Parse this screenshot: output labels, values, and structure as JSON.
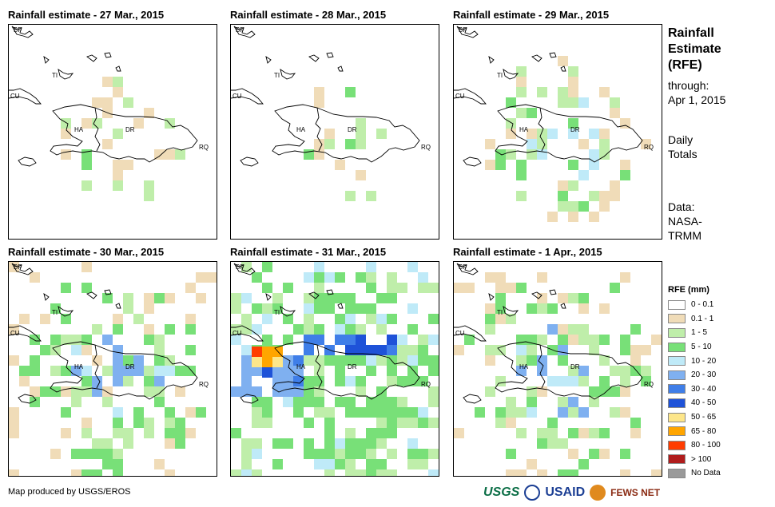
{
  "panels": [
    {
      "title": "Rainfall estimate - 27 Mar., 2015",
      "intensity": 1,
      "seed": 11
    },
    {
      "title": "Rainfall estimate - 28 Mar., 2015",
      "intensity": 1,
      "seed": 23
    },
    {
      "title": "Rainfall estimate - 29 Mar., 2015",
      "intensity": 2,
      "seed": 37
    },
    {
      "title": "Rainfall estimate - 30 Mar., 2015",
      "intensity": 3,
      "seed": 41
    },
    {
      "title": "Rainfall estimate - 31 Mar., 2015",
      "intensity": 5,
      "seed": 53
    },
    {
      "title": "Rainfall estimate - 1 Apr., 2015",
      "intensity": 3,
      "seed": 67
    }
  ],
  "map_labels": {
    "bf": "BF",
    "ti": "TI",
    "cu": "CU",
    "ha": "HA",
    "dr": "DR",
    "rq": "RQ"
  },
  "side": {
    "title": [
      "Rainfall",
      "Estimate",
      "(RFE)"
    ],
    "through": [
      "through:",
      "Apr 1, 2015"
    ],
    "totals": [
      "Daily",
      "Totals"
    ],
    "data": [
      "Data:",
      "NASA-",
      "TRMM"
    ]
  },
  "legend": {
    "title": "RFE (mm)",
    "items": [
      {
        "label": "0 - 0.1",
        "color": "#ffffff"
      },
      {
        "label": "0.1 - 1",
        "color": "#f0dcb8"
      },
      {
        "label": "1 - 5",
        "color": "#bfeeaa"
      },
      {
        "label": "5 - 10",
        "color": "#78e078"
      },
      {
        "label": "10 - 20",
        "color": "#bfeaf8"
      },
      {
        "label": "20 - 30",
        "color": "#7fb0f0"
      },
      {
        "label": "30 - 40",
        "color": "#3f7ee8"
      },
      {
        "label": "40 - 50",
        "color": "#1e52d8"
      },
      {
        "label": "50 - 65",
        "color": "#fde68a"
      },
      {
        "label": "65 - 80",
        "color": "#ffa500"
      },
      {
        "label": "80 - 100",
        "color": "#ff3c00"
      },
      {
        "label": "> 100",
        "color": "#b01c1c"
      },
      {
        "label": "No Data",
        "color": "#9a9a9a"
      }
    ]
  },
  "credit": "Map produced by USGS/EROS",
  "logos": {
    "usgs": "USGS",
    "usaid": "USAID",
    "fews": "FEWS NET"
  }
}
